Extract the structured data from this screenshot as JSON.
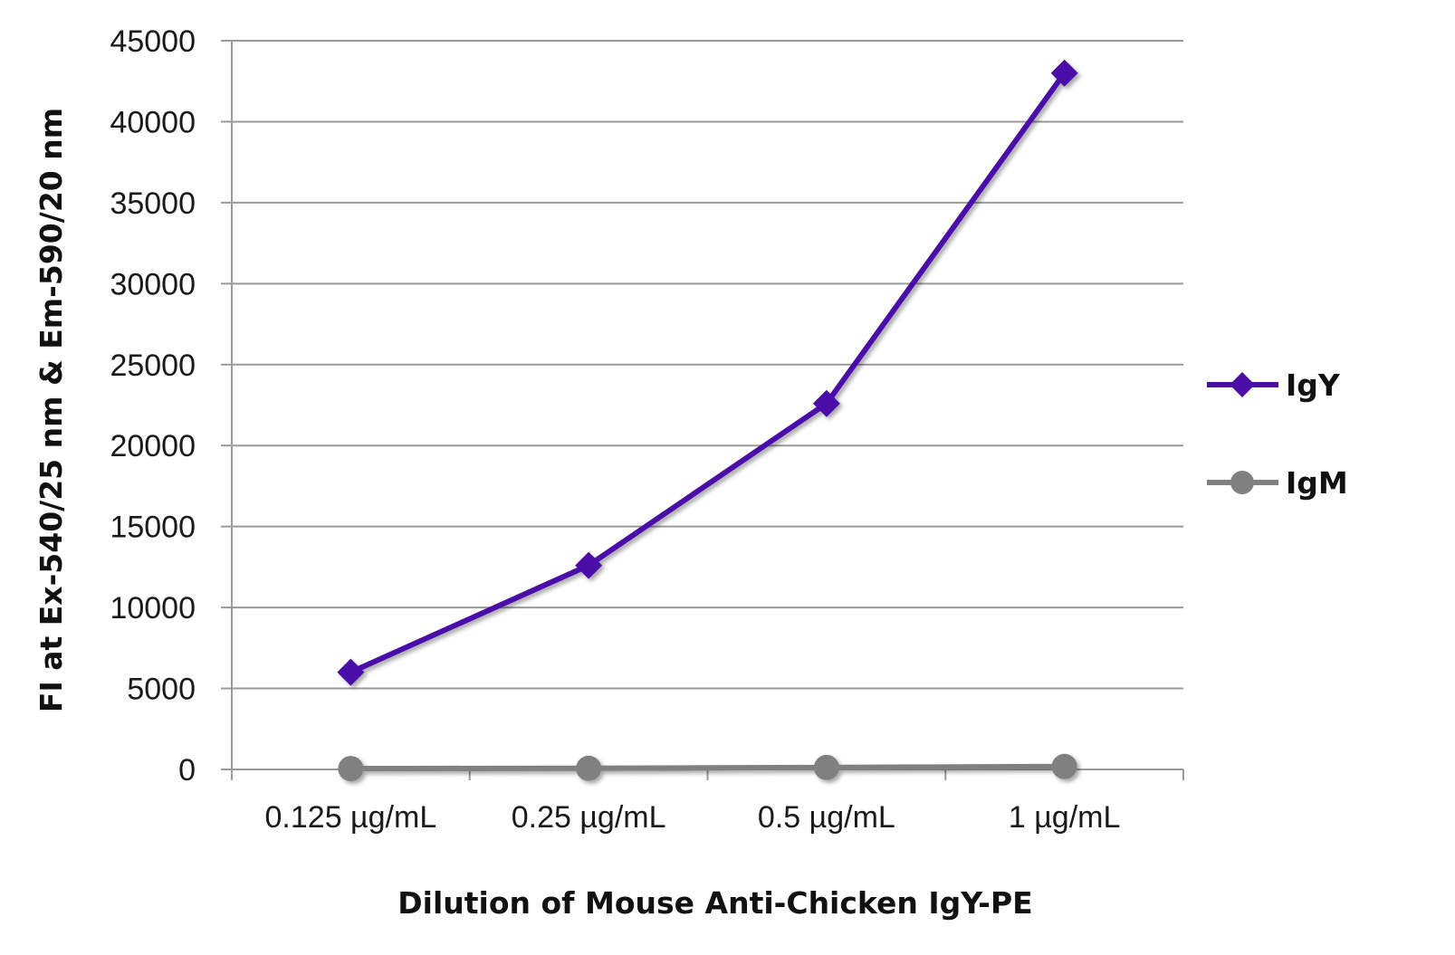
{
  "chart_data": {
    "type": "line",
    "title": "",
    "xlabel": "Dilution of Mouse Anti-Chicken IgY-PE",
    "ylabel": "FI at Ex-540/25 nm & Em-590/20 nm",
    "categories": [
      "0.125 µg/mL",
      "0.25 µg/mL",
      "0.5 µg/mL",
      "1 µg/mL"
    ],
    "ylim": [
      0,
      45000
    ],
    "yticks": [
      "0",
      "5000",
      "10000",
      "15000",
      "20000",
      "25000",
      "30000",
      "35000",
      "40000",
      "45000"
    ],
    "grid": "horizontal",
    "legend_position": "right",
    "series": [
      {
        "name": "IgY",
        "values": [
          6000,
          12600,
          22600,
          43000
        ],
        "color": "#4B0FA8",
        "marker": "diamond"
      },
      {
        "name": "IgM",
        "values": [
          50,
          70,
          120,
          180
        ],
        "color": "#808080",
        "marker": "circle"
      }
    ]
  }
}
